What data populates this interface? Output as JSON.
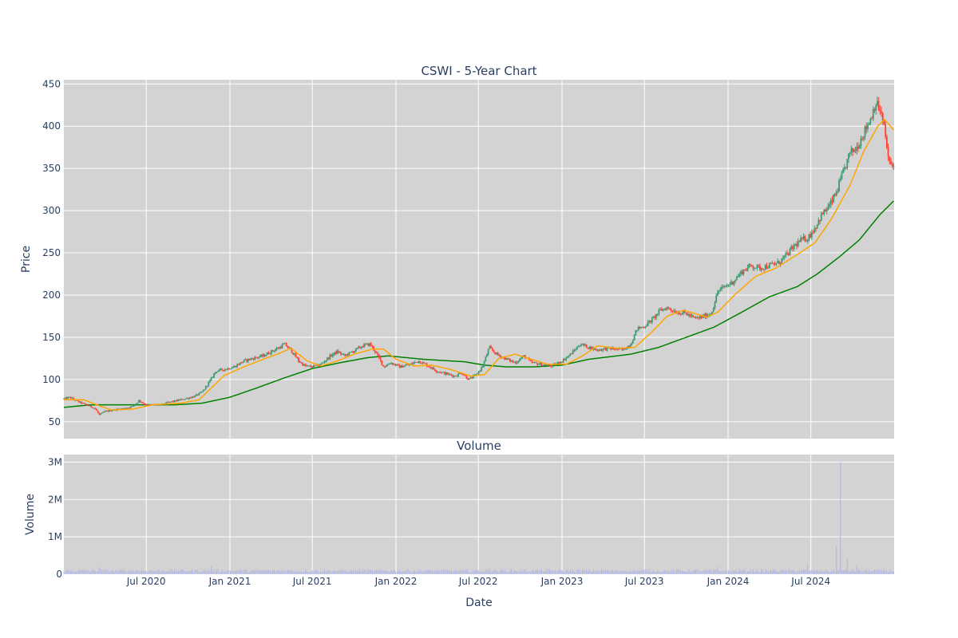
{
  "chart_data": {
    "type": "candlestick",
    "title": "CSWI - 5-Year Chart",
    "price_panel": {
      "ylabel": "Price",
      "ylim": [
        30,
        455
      ],
      "yticks": [
        50,
        100,
        150,
        200,
        250,
        300,
        350,
        400,
        450
      ],
      "background": "#d3d3d3",
      "grid": true,
      "candle_up_color": "#3d9970",
      "candle_down_color": "#ff4136",
      "ma_short_color": "#ffa500",
      "ma_long_color": "#008000",
      "close_path": [
        [
          "2020-01-02",
          77
        ],
        [
          "2020-01-15",
          79
        ],
        [
          "2020-02-01",
          74
        ],
        [
          "2020-02-20",
          70
        ],
        [
          "2020-03-10",
          66
        ],
        [
          "2020-03-20",
          58
        ],
        [
          "2020-04-01",
          62
        ],
        [
          "2020-04-20",
          64
        ],
        [
          "2020-05-15",
          66
        ],
        [
          "2020-06-01",
          68
        ],
        [
          "2020-06-15",
          75
        ],
        [
          "2020-07-01",
          70
        ],
        [
          "2020-08-01",
          70
        ],
        [
          "2020-08-20",
          73
        ],
        [
          "2020-09-15",
          76
        ],
        [
          "2020-10-15",
          80
        ],
        [
          "2020-11-01",
          85
        ],
        [
          "2020-11-20",
          100
        ],
        [
          "2020-12-01",
          110
        ],
        [
          "2020-12-20",
          112
        ],
        [
          "2021-01-10",
          115
        ],
        [
          "2021-02-01",
          122
        ],
        [
          "2021-02-20",
          125
        ],
        [
          "2021-03-15",
          128
        ],
        [
          "2021-04-01",
          133
        ],
        [
          "2021-04-20",
          138
        ],
        [
          "2021-05-01",
          142
        ],
        [
          "2021-05-15",
          135
        ],
        [
          "2021-06-01",
          122
        ],
        [
          "2021-06-15",
          116
        ],
        [
          "2021-07-01",
          115
        ],
        [
          "2021-07-20",
          118
        ],
        [
          "2021-08-10",
          128
        ],
        [
          "2021-08-25",
          133
        ],
        [
          "2021-09-10",
          128
        ],
        [
          "2021-10-01",
          134
        ],
        [
          "2021-10-20",
          140
        ],
        [
          "2021-11-05",
          142
        ],
        [
          "2021-11-20",
          130
        ],
        [
          "2021-12-05",
          115
        ],
        [
          "2021-12-20",
          120
        ],
        [
          "2022-01-10",
          115
        ],
        [
          "2022-02-01",
          118
        ],
        [
          "2022-02-20",
          122
        ],
        [
          "2022-03-10",
          117
        ],
        [
          "2022-04-01",
          110
        ],
        [
          "2022-04-20",
          107
        ],
        [
          "2022-05-10",
          104
        ],
        [
          "2022-05-25",
          108
        ],
        [
          "2022-06-10",
          100
        ],
        [
          "2022-06-25",
          105
        ],
        [
          "2022-07-10",
          115
        ],
        [
          "2022-07-25",
          138
        ],
        [
          "2022-08-10",
          130
        ],
        [
          "2022-09-01",
          124
        ],
        [
          "2022-09-20",
          120
        ],
        [
          "2022-10-10",
          128
        ],
        [
          "2022-10-25",
          120
        ],
        [
          "2022-11-15",
          118
        ],
        [
          "2022-12-10",
          116
        ],
        [
          "2023-01-01",
          122
        ],
        [
          "2023-01-20",
          130
        ],
        [
          "2023-02-10",
          142
        ],
        [
          "2023-03-01",
          138
        ],
        [
          "2023-03-20",
          135
        ],
        [
          "2023-04-15",
          137
        ],
        [
          "2023-05-15",
          135
        ],
        [
          "2023-06-01",
          142
        ],
        [
          "2023-06-15",
          160
        ],
        [
          "2023-07-01",
          163
        ],
        [
          "2023-07-20",
          172
        ],
        [
          "2023-08-05",
          182
        ],
        [
          "2023-08-20",
          185
        ],
        [
          "2023-09-10",
          180
        ],
        [
          "2023-10-01",
          178
        ],
        [
          "2023-10-20",
          172
        ],
        [
          "2023-11-10",
          175
        ],
        [
          "2023-11-25",
          178
        ],
        [
          "2023-12-10",
          205
        ],
        [
          "2023-12-25",
          210
        ],
        [
          "2024-01-10",
          215
        ],
        [
          "2024-02-01",
          228
        ],
        [
          "2024-02-20",
          235
        ],
        [
          "2024-03-10",
          232
        ],
        [
          "2024-04-01",
          235
        ],
        [
          "2024-04-20",
          238
        ],
        [
          "2024-05-10",
          248
        ],
        [
          "2024-05-25",
          258
        ],
        [
          "2024-06-10",
          265
        ],
        [
          "2024-06-25",
          268
        ],
        [
          "2024-07-10",
          280
        ],
        [
          "2024-07-25",
          295
        ],
        [
          "2024-08-10",
          305
        ],
        [
          "2024-08-25",
          320
        ],
        [
          "2024-09-10",
          345
        ],
        [
          "2024-09-25",
          368
        ],
        [
          "2024-10-10",
          375
        ],
        [
          "2024-10-25",
          392
        ],
        [
          "2024-11-10",
          410
        ],
        [
          "2024-11-20",
          428
        ],
        [
          "2024-12-01",
          418
        ],
        [
          "2024-12-10",
          395
        ],
        [
          "2024-12-20",
          355
        ],
        [
          "2024-12-31",
          352
        ]
      ],
      "ma_short": [
        [
          "2020-01-02",
          76
        ],
        [
          "2020-02-15",
          76
        ],
        [
          "2020-03-15",
          70
        ],
        [
          "2020-04-15",
          64
        ],
        [
          "2020-06-01",
          65
        ],
        [
          "2020-07-15",
          70
        ],
        [
          "2020-09-15",
          72
        ],
        [
          "2020-10-25",
          76
        ],
        [
          "2020-11-25",
          92
        ],
        [
          "2020-12-20",
          105
        ],
        [
          "2021-02-01",
          115
        ],
        [
          "2021-03-15",
          124
        ],
        [
          "2021-04-15",
          130
        ],
        [
          "2021-05-15",
          137
        ],
        [
          "2021-06-20",
          122
        ],
        [
          "2021-07-20",
          116
        ],
        [
          "2021-08-25",
          122
        ],
        [
          "2021-10-01",
          130
        ],
        [
          "2021-11-10",
          136
        ],
        [
          "2021-12-05",
          136
        ],
        [
          "2022-01-01",
          124
        ],
        [
          "2022-02-10",
          116
        ],
        [
          "2022-03-20",
          117
        ],
        [
          "2022-05-01",
          112
        ],
        [
          "2022-06-15",
          104
        ],
        [
          "2022-07-15",
          106
        ],
        [
          "2022-08-15",
          125
        ],
        [
          "2022-09-20",
          130
        ],
        [
          "2022-10-25",
          124
        ],
        [
          "2022-12-01",
          118
        ],
        [
          "2023-01-10",
          118
        ],
        [
          "2023-02-15",
          128
        ],
        [
          "2023-03-20",
          140
        ],
        [
          "2023-05-01",
          137
        ],
        [
          "2023-06-10",
          138
        ],
        [
          "2023-07-15",
          155
        ],
        [
          "2023-08-20",
          175
        ],
        [
          "2023-09-25",
          182
        ],
        [
          "2023-11-15",
          174
        ],
        [
          "2023-12-10",
          180
        ],
        [
          "2024-01-15",
          200
        ],
        [
          "2024-03-01",
          222
        ],
        [
          "2024-04-15",
          232
        ],
        [
          "2024-06-01",
          248
        ],
        [
          "2024-07-10",
          262
        ],
        [
          "2024-08-15",
          290
        ],
        [
          "2024-09-25",
          330
        ],
        [
          "2024-10-25",
          370
        ],
        [
          "2024-11-25",
          400
        ],
        [
          "2024-12-10",
          408
        ],
        [
          "2024-12-31",
          395
        ]
      ],
      "ma_long": [
        [
          "2020-01-02",
          67
        ],
        [
          "2020-03-01",
          70
        ],
        [
          "2020-06-01",
          70
        ],
        [
          "2020-09-01",
          70
        ],
        [
          "2020-11-01",
          72
        ],
        [
          "2021-01-01",
          79
        ],
        [
          "2021-03-01",
          90
        ],
        [
          "2021-05-01",
          102
        ],
        [
          "2021-07-01",
          113
        ],
        [
          "2021-09-01",
          120
        ],
        [
          "2021-11-01",
          126
        ],
        [
          "2021-12-15",
          128
        ],
        [
          "2022-03-01",
          124
        ],
        [
          "2022-05-01",
          122
        ],
        [
          "2022-06-01",
          121
        ],
        [
          "2022-07-15",
          117
        ],
        [
          "2022-09-01",
          115
        ],
        [
          "2022-11-01",
          115
        ],
        [
          "2023-01-01",
          117
        ],
        [
          "2023-03-01",
          124
        ],
        [
          "2023-06-01",
          130
        ],
        [
          "2023-08-01",
          138
        ],
        [
          "2023-10-01",
          150
        ],
        [
          "2023-12-01",
          162
        ],
        [
          "2024-02-01",
          180
        ],
        [
          "2024-04-01",
          198
        ],
        [
          "2024-06-01",
          210
        ],
        [
          "2024-07-15",
          225
        ],
        [
          "2024-09-01",
          245
        ],
        [
          "2024-10-15",
          265
        ],
        [
          "2024-12-01",
          296
        ],
        [
          "2024-12-31",
          312
        ]
      ]
    },
    "volume_panel": {
      "title": "Volume",
      "ylabel": "Volume",
      "ylim": [
        0,
        3200000
      ],
      "yticks": [
        0,
        1000000,
        2000000,
        3000000
      ],
      "ytick_labels": [
        "0",
        "1M",
        "2M",
        "3M"
      ],
      "bar_color": "#b5b8e3",
      "base_volume": 90000,
      "spikes": [
        [
          "2020-03-20",
          180000
        ],
        [
          "2020-11-20",
          220000
        ],
        [
          "2022-07-25",
          160000
        ],
        [
          "2023-12-10",
          200000
        ],
        [
          "2024-06-25",
          280000
        ],
        [
          "2024-08-25",
          750000
        ],
        [
          "2024-09-05",
          3000000
        ],
        [
          "2024-09-20",
          400000
        ],
        [
          "2024-10-10",
          250000
        ]
      ]
    },
    "xlabel": "Date",
    "x_range": [
      "2020-01-02",
      "2024-12-31"
    ],
    "x_ticks": [
      {
        "date": "2020-07-01",
        "label": "Jul 2020"
      },
      {
        "date": "2021-01-01",
        "label": "Jan 2021"
      },
      {
        "date": "2021-07-01",
        "label": "Jul 2021"
      },
      {
        "date": "2022-01-01",
        "label": "Jan 2022"
      },
      {
        "date": "2022-07-01",
        "label": "Jul 2022"
      },
      {
        "date": "2023-01-01",
        "label": "Jan 2023"
      },
      {
        "date": "2023-07-01",
        "label": "Jul 2023"
      },
      {
        "date": "2024-01-01",
        "label": "Jan 2024"
      },
      {
        "date": "2024-07-01",
        "label": "Jul 2024"
      }
    ]
  }
}
